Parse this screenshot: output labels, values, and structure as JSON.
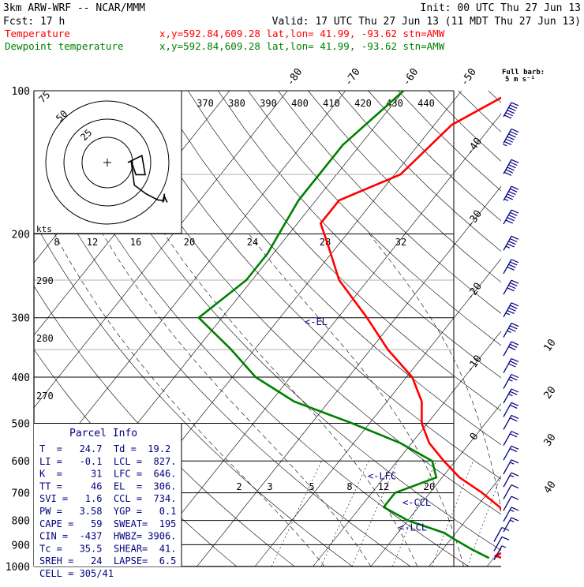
{
  "header": {
    "model": "3km ARW-WRF -- NCAR/MMM",
    "init": "Init: 00 UTC Thu 27 Jun 13",
    "fcst": "Fcst:   17 h",
    "valid": "Valid: 17 UTC Thu 27 Jun 13 (11 MDT Thu 27 Jun 13)"
  },
  "legend": [
    {
      "label": "Temperature",
      "info": "x,y=592.84,609.28   lat,lon= 41.99, -93.62  stn=AMW",
      "color": "#ff0000"
    },
    {
      "label": "Dewpoint temperature",
      "info": "x,y=592.84,609.28   lat,lon= 41.99, -93.62  stn=AMW",
      "color": "#008000"
    }
  ],
  "barb_legend": {
    "title": "Full barb:",
    "sub": "5 m s⁻¹"
  },
  "hodograph": {
    "unit": "kts",
    "ring_labels": [
      "75",
      "50",
      "25"
    ]
  },
  "parcel_info": {
    "title": "Parcel Info",
    "rows": [
      "T  =   24.7  Td =  19.2",
      "LI =   -0.1  LCL =  827.",
      "K  =     31  LFC =  646.",
      "TT =     46  EL  =  306.",
      "SVI =   1.6  CCL =  734.",
      "PW =   3.58  YGP =   0.1",
      "CAPE =   59  SWEAT=  195",
      "CIN =  -437  HWBZ= 3906.",
      "Tc =   35.5  SHEAR=  41.",
      "SREH =   24  LAPSE=  6.5",
      "CELL = 305/41"
    ]
  },
  "level_labels": {
    "el": "<-EL",
    "lfc": "<-LFC",
    "ccl": "<-CCL",
    "lcl": "<-LCL"
  },
  "chart_data": {
    "type": "line",
    "title": "",
    "yaxis": {
      "label": "",
      "ticks": [
        100,
        200,
        300,
        400,
        500,
        600,
        700,
        800,
        900,
        1000
      ],
      "scale": "log-pressure"
    },
    "isotherm_labels": [
      -80,
      -70,
      -60,
      -50,
      -40,
      -30,
      -20,
      -10,
      0,
      10,
      20,
      30,
      40
    ],
    "theta_labels": [
      370,
      380,
      390,
      400,
      410,
      420,
      430,
      440
    ],
    "theta_e_labels": [
      8,
      12,
      16,
      20,
      24,
      28,
      32
    ],
    "dry_adiabat_labels": [
      290,
      280,
      270
    ],
    "mixing_ratio_labels": [
      2,
      3,
      5,
      8,
      12,
      20
    ],
    "levels": {
      "el": 306,
      "lfc": 646,
      "ccl": 734,
      "lcl": 827
    },
    "series": [
      {
        "name": "Temperature",
        "color": "#ff0000",
        "points": [
          [
            100,
            -41
          ],
          [
            118,
            -47
          ],
          [
            150,
            -49
          ],
          [
            170,
            -56
          ],
          [
            190,
            -56
          ],
          [
            215,
            -51
          ],
          [
            250,
            -45
          ],
          [
            300,
            -35
          ],
          [
            350,
            -27
          ],
          [
            400,
            -19
          ],
          [
            450,
            -14
          ],
          [
            500,
            -11
          ],
          [
            550,
            -7
          ],
          [
            600,
            -2
          ],
          [
            650,
            3
          ],
          [
            700,
            9
          ],
          [
            750,
            14
          ],
          [
            800,
            17
          ],
          [
            850,
            20
          ],
          [
            880,
            22
          ],
          [
            910,
            22
          ],
          [
            950,
            20
          ],
          [
            980,
            24.7
          ]
        ]
      },
      {
        "name": "Dewpoint temperature",
        "color": "#008000",
        "points": [
          [
            100,
            -60
          ],
          [
            130,
            -63
          ],
          [
            170,
            -63
          ],
          [
            220,
            -61
          ],
          [
            250,
            -61
          ],
          [
            300,
            -64
          ],
          [
            350,
            -54
          ],
          [
            400,
            -46
          ],
          [
            450,
            -36
          ],
          [
            500,
            -23
          ],
          [
            550,
            -12
          ],
          [
            600,
            -4
          ],
          [
            650,
            -1
          ],
          [
            700,
            -6
          ],
          [
            750,
            -6
          ],
          [
            800,
            0
          ],
          [
            850,
            8
          ],
          [
            880,
            11
          ],
          [
            920,
            15
          ],
          [
            960,
            19.2
          ]
        ]
      }
    ],
    "hodograph_trace": [
      [
        0,
        0
      ],
      [
        1.8,
        -0.8
      ],
      [
        2.3,
        1.4
      ],
      [
        1.2,
        1.4
      ],
      [
        0.9,
        -0.2
      ],
      [
        1.5,
        2.6
      ],
      [
        3,
        3.6
      ],
      [
        4.4,
        4.3
      ],
      [
        5.2,
        4.4
      ],
      [
        5.6,
        3.6
      ],
      [
        5.8,
        4.6
      ],
      [
        6.3,
        3.9
      ],
      [
        6.5,
        4.6
      ]
    ],
    "wind_barbs": [
      {
        "p": 110,
        "full": 6,
        "half": 0
      },
      {
        "p": 125,
        "full": 6,
        "half": 1
      },
      {
        "p": 145,
        "full": 6,
        "half": 0
      },
      {
        "p": 165,
        "full": 5,
        "half": 1
      },
      {
        "p": 185,
        "full": 5,
        "half": 0
      },
      {
        "p": 210,
        "full": 4,
        "half": 1
      },
      {
        "p": 235,
        "full": 4,
        "half": 0
      },
      {
        "p": 260,
        "full": 4,
        "half": 0
      },
      {
        "p": 290,
        "full": 4,
        "half": 1
      },
      {
        "p": 320,
        "full": 3,
        "half": 1
      },
      {
        "p": 350,
        "full": 3,
        "half": 0
      },
      {
        "p": 380,
        "full": 3,
        "half": 0
      },
      {
        "p": 410,
        "full": 2,
        "half": 1
      },
      {
        "p": 440,
        "full": 2,
        "half": 1
      },
      {
        "p": 470,
        "full": 2,
        "half": 0
      },
      {
        "p": 500,
        "full": 2,
        "half": 0
      },
      {
        "p": 540,
        "full": 2,
        "half": 0
      },
      {
        "p": 580,
        "full": 2,
        "half": 0
      },
      {
        "p": 620,
        "full": 1,
        "half": 1
      },
      {
        "p": 660,
        "full": 1,
        "half": 1
      },
      {
        "p": 700,
        "full": 1,
        "half": 0
      },
      {
        "p": 740,
        "full": 1,
        "half": 0
      },
      {
        "p": 780,
        "full": 1,
        "half": 1
      },
      {
        "p": 820,
        "full": 1,
        "half": 1
      },
      {
        "p": 860,
        "full": 1,
        "half": 0
      },
      {
        "p": 900,
        "full": 1,
        "half": 0
      },
      {
        "p": 940,
        "full": 0,
        "half": 1
      }
    ]
  }
}
